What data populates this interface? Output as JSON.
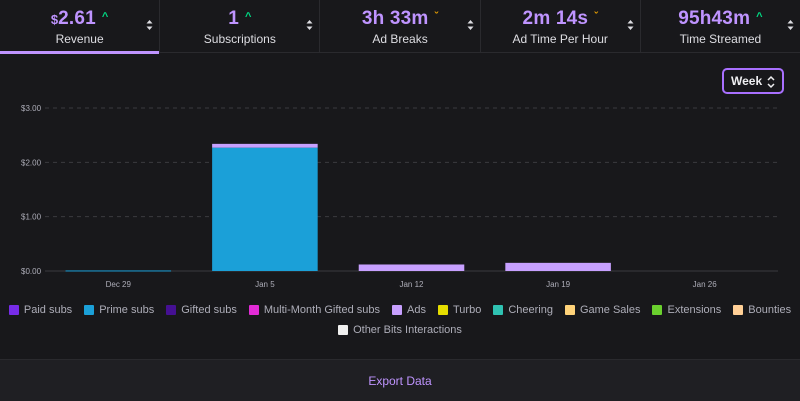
{
  "kpis": [
    {
      "value": "2.61",
      "prefix": "$",
      "trend": "up",
      "trend_glyph": "^",
      "label": "Revenue",
      "active": true
    },
    {
      "value": "1",
      "prefix": "",
      "trend": "up",
      "trend_glyph": "^",
      "label": "Subscriptions",
      "active": false
    },
    {
      "value": "3h 33m",
      "prefix": "",
      "trend": "down",
      "trend_glyph": "ˇ",
      "label": "Ad Breaks",
      "active": false
    },
    {
      "value": "2m 14s",
      "prefix": "",
      "trend": "down",
      "trend_glyph": "ˇ",
      "label": "Ad Time Per Hour",
      "active": false
    },
    {
      "value": "95h43m",
      "prefix": "",
      "trend": "up",
      "trend_glyph": "^",
      "label": "Time Streamed",
      "active": false
    }
  ],
  "period_select": {
    "value": "Week"
  },
  "chart_data": {
    "type": "bar",
    "stacked": true,
    "categories": [
      "Dec 29",
      "Jan 5",
      "Jan 12",
      "Jan 19",
      "Jan 26"
    ],
    "y_tick_labels": [
      "$0.00",
      "$1.00",
      "$2.00",
      "$3.00"
    ],
    "ylim": [
      0,
      3
    ],
    "grid": true,
    "legend_position": "bottom",
    "series": [
      {
        "name": "Paid subs",
        "color": "#772ce8",
        "values": [
          0,
          0,
          0,
          0,
          0
        ]
      },
      {
        "name": "Prime subs",
        "color": "#1ba0d8",
        "values": [
          0.01,
          2.27,
          0,
          0,
          0
        ]
      },
      {
        "name": "Gifted subs",
        "color": "#451093",
        "values": [
          0,
          0,
          0,
          0,
          0
        ]
      },
      {
        "name": "Multi-Month Gifted subs",
        "color": "#e22bd6",
        "values": [
          0,
          0,
          0,
          0,
          0
        ]
      },
      {
        "name": "Ads",
        "color": "#c7a0ff",
        "values": [
          0,
          0.07,
          0.12,
          0.15,
          0
        ]
      },
      {
        "name": "Turbo",
        "color": "#e5dd00",
        "values": [
          0,
          0,
          0,
          0,
          0
        ]
      },
      {
        "name": "Cheering",
        "color": "#2fc2b2",
        "values": [
          0,
          0,
          0,
          0,
          0
        ]
      },
      {
        "name": "Game Sales",
        "color": "#ffd37a",
        "values": [
          0,
          0,
          0,
          0,
          0
        ]
      },
      {
        "name": "Extensions",
        "color": "#6ad02e",
        "values": [
          0,
          0,
          0,
          0,
          0
        ]
      },
      {
        "name": "Bounties",
        "color": "#ffcf96",
        "values": [
          0,
          0,
          0,
          0,
          0
        ]
      },
      {
        "name": "Other Bits Interactions",
        "color": "#f0f0f0",
        "values": [
          0,
          0,
          0,
          0,
          0
        ]
      }
    ]
  },
  "footer": {
    "export_label": "Export Data"
  }
}
